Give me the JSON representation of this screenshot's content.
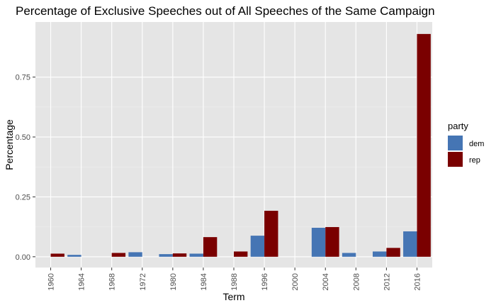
{
  "chart_data": {
    "type": "bar",
    "title": "Percentage of Exclusive Speeches out of All Speeches of the Same Campaign",
    "xlabel": "Term",
    "ylabel": "Percentage",
    "categories": [
      "1960",
      "1964",
      "1968",
      "1972",
      "1980",
      "1984",
      "1988",
      "1996",
      "2000",
      "2004",
      "2008",
      "2012",
      "2016"
    ],
    "series": [
      {
        "name": "dem",
        "color": "#4575b4",
        "values": [
          null,
          0.008,
          null,
          0.019,
          0.011,
          0.013,
          null,
          0.088,
          null,
          0.121,
          0.016,
          0.022,
          0.106
        ]
      },
      {
        "name": "rep",
        "color": "#7a0000",
        "values": [
          0.013,
          null,
          0.016,
          null,
          0.014,
          0.082,
          0.022,
          0.192,
          null,
          0.124,
          null,
          0.037,
          0.93
        ]
      }
    ],
    "ylim": [
      -0.045,
      0.98
    ],
    "yticks": [
      0.0,
      0.25,
      0.5,
      0.75
    ],
    "ytick_labels": [
      "0.00",
      "0.25",
      "0.50",
      "0.75"
    ],
    "grid": true,
    "legend": {
      "title": "party",
      "position": "right",
      "labels": [
        "dem",
        "rep"
      ]
    }
  }
}
